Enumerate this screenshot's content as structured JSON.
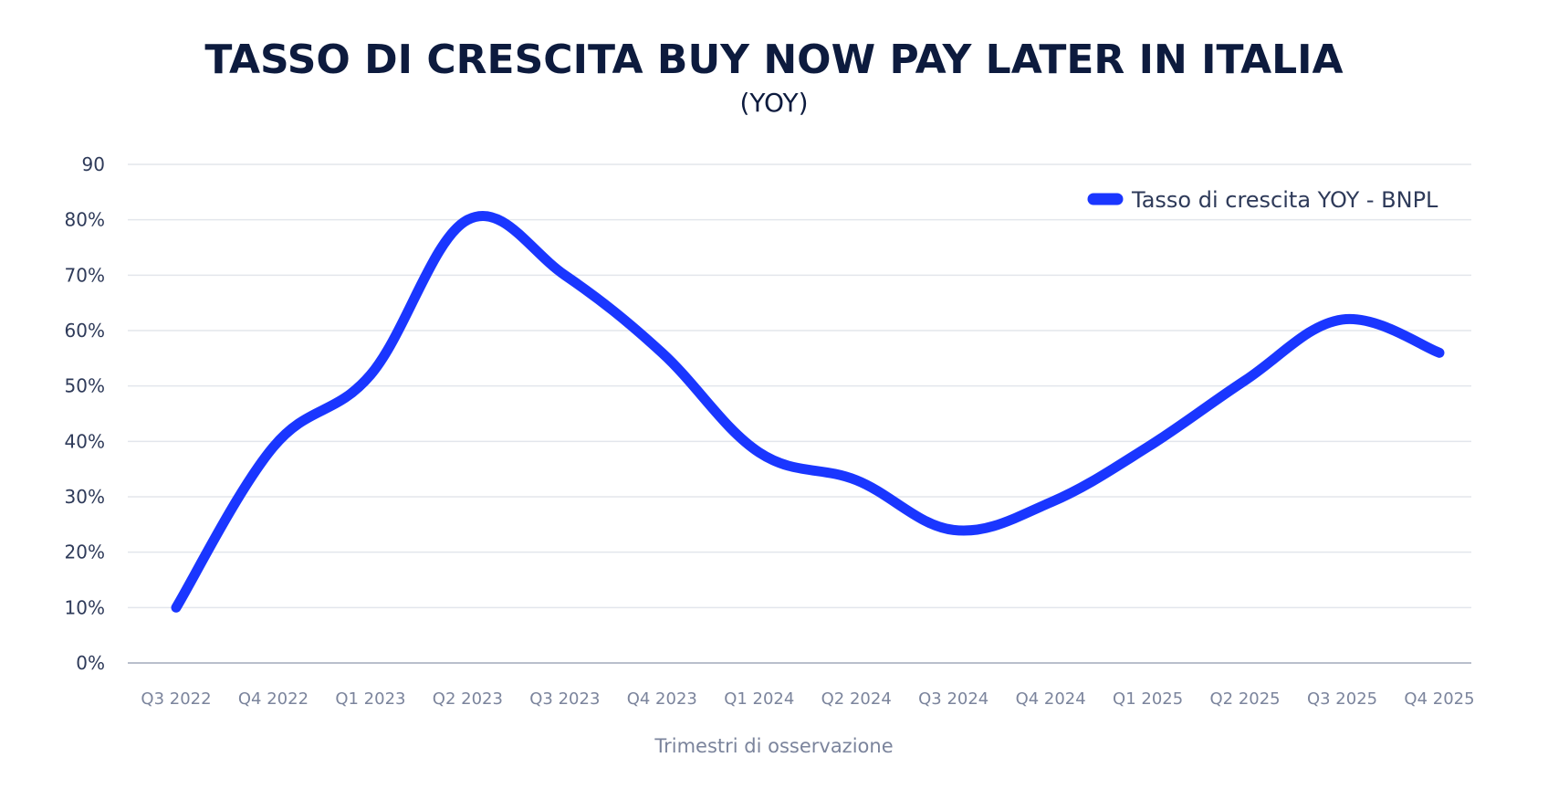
{
  "chart_data": {
    "type": "line",
    "title": "TASSO DI CRESCITA BUY NOW PAY LATER IN ITALIA",
    "subtitle": "(YOY)",
    "xlabel": "Trimestri di osservazione",
    "ylabel": "",
    "ylim": [
      0,
      90
    ],
    "y_ticks": [
      {
        "value": 0,
        "label": "0%"
      },
      {
        "value": 10,
        "label": "10%"
      },
      {
        "value": 20,
        "label": "20%"
      },
      {
        "value": 30,
        "label": "30%"
      },
      {
        "value": 40,
        "label": "40%"
      },
      {
        "value": 50,
        "label": "50%"
      },
      {
        "value": 60,
        "label": "60%"
      },
      {
        "value": 70,
        "label": "70%"
      },
      {
        "value": 80,
        "label": "80%"
      },
      {
        "value": 90,
        "label": "90"
      }
    ],
    "categories": [
      "Q3 2022",
      "Q4 2022",
      "Q1 2023",
      "Q2 2023",
      "Q3 2023",
      "Q4 2023",
      "Q1 2024",
      "Q2 2024",
      "Q3 2024",
      "Q4 2024",
      "Q1 2025",
      "Q2 2025",
      "Q3 2025",
      "Q4 2025"
    ],
    "series": [
      {
        "name": "Tasso di crescita YOY - BNPL",
        "color": "#1a36ff",
        "values": [
          10,
          39,
          52,
          80,
          70,
          56,
          38,
          33,
          24,
          29,
          39,
          51,
          62,
          56
        ]
      }
    ],
    "grid": true,
    "legend": "top-right"
  }
}
